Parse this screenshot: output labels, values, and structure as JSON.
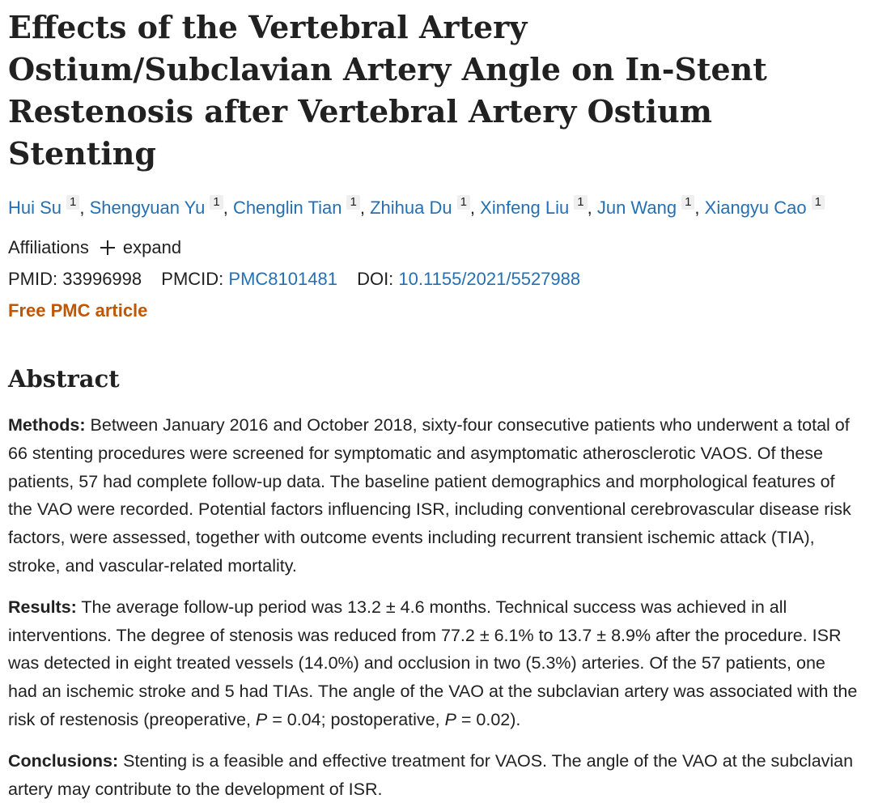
{
  "article": {
    "title": "Effects of the Vertebral Artery Ostium/Subclavian Artery Angle on In-Stent Restenosis after Vertebral Artery Ostium Stenting"
  },
  "authors": [
    {
      "name": "Hui Su",
      "affiliation_ref": "1"
    },
    {
      "name": "Shengyuan Yu",
      "affiliation_ref": "1"
    },
    {
      "name": "Chenglin Tian",
      "affiliation_ref": "1"
    },
    {
      "name": "Zhihua Du",
      "affiliation_ref": "1"
    },
    {
      "name": "Xinfeng Liu",
      "affiliation_ref": "1"
    },
    {
      "name": "Jun Wang",
      "affiliation_ref": "1"
    },
    {
      "name": "Xiangyu Cao",
      "affiliation_ref": "1"
    }
  ],
  "affiliations": {
    "label": "Affiliations",
    "expand_label": "expand"
  },
  "identifiers": {
    "pmid_label": "PMID:",
    "pmid": "33996998",
    "pmcid_label": "PMCID:",
    "pmcid": "PMC8101481",
    "doi_label": "DOI:",
    "doi": "10.1155/2021/5527988"
  },
  "free_pmc": "Free PMC article",
  "abstract": {
    "heading": "Abstract",
    "methods": {
      "label": "Methods:",
      "text": "Between January 2016 and October 2018, sixty-four consecutive patients who underwent a total of 66 stenting procedures were screened for symptomatic and asymptomatic atherosclerotic VAOS. Of these patients, 57 had complete follow-up data. The baseline patient demographics and morphological features of the VAO were recorded. Potential factors influencing ISR, including conventional cerebrovascular disease risk factors, were assessed, together with outcome events including recurrent transient ischemic attack (TIA), stroke, and vascular-related mortality."
    },
    "results": {
      "label": "Results:",
      "text_1": "The average follow-up period was 13.2 ± 4.6 months. Technical success was achieved in all interventions. The degree of stenosis was reduced from 77.2 ± 6.1% to 13.7 ± 8.9% after the procedure. ISR was detected in eight treated vessels (14.0%) and occlusion in two (5.3%) arteries. Of the 57 patients, one had an ischemic stroke and 5 had TIAs. The angle of the VAO at the subclavian artery was associated with the risk of restenosis (preoperative, ",
      "p_symbol_1": "P",
      "text_2": " = 0.04; postoperative, ",
      "p_symbol_2": "P",
      "text_3": " = 0.02)."
    },
    "conclusions": {
      "label": "Conclusions:",
      "text": "Stenting is a feasible and effective treatment for VAOS. The angle of the VAO at the subclavian artery may contribute to the development of ISR."
    }
  },
  "colors": {
    "link": "#2470b3",
    "free_pmc": "#c05600",
    "text": "#212121"
  }
}
